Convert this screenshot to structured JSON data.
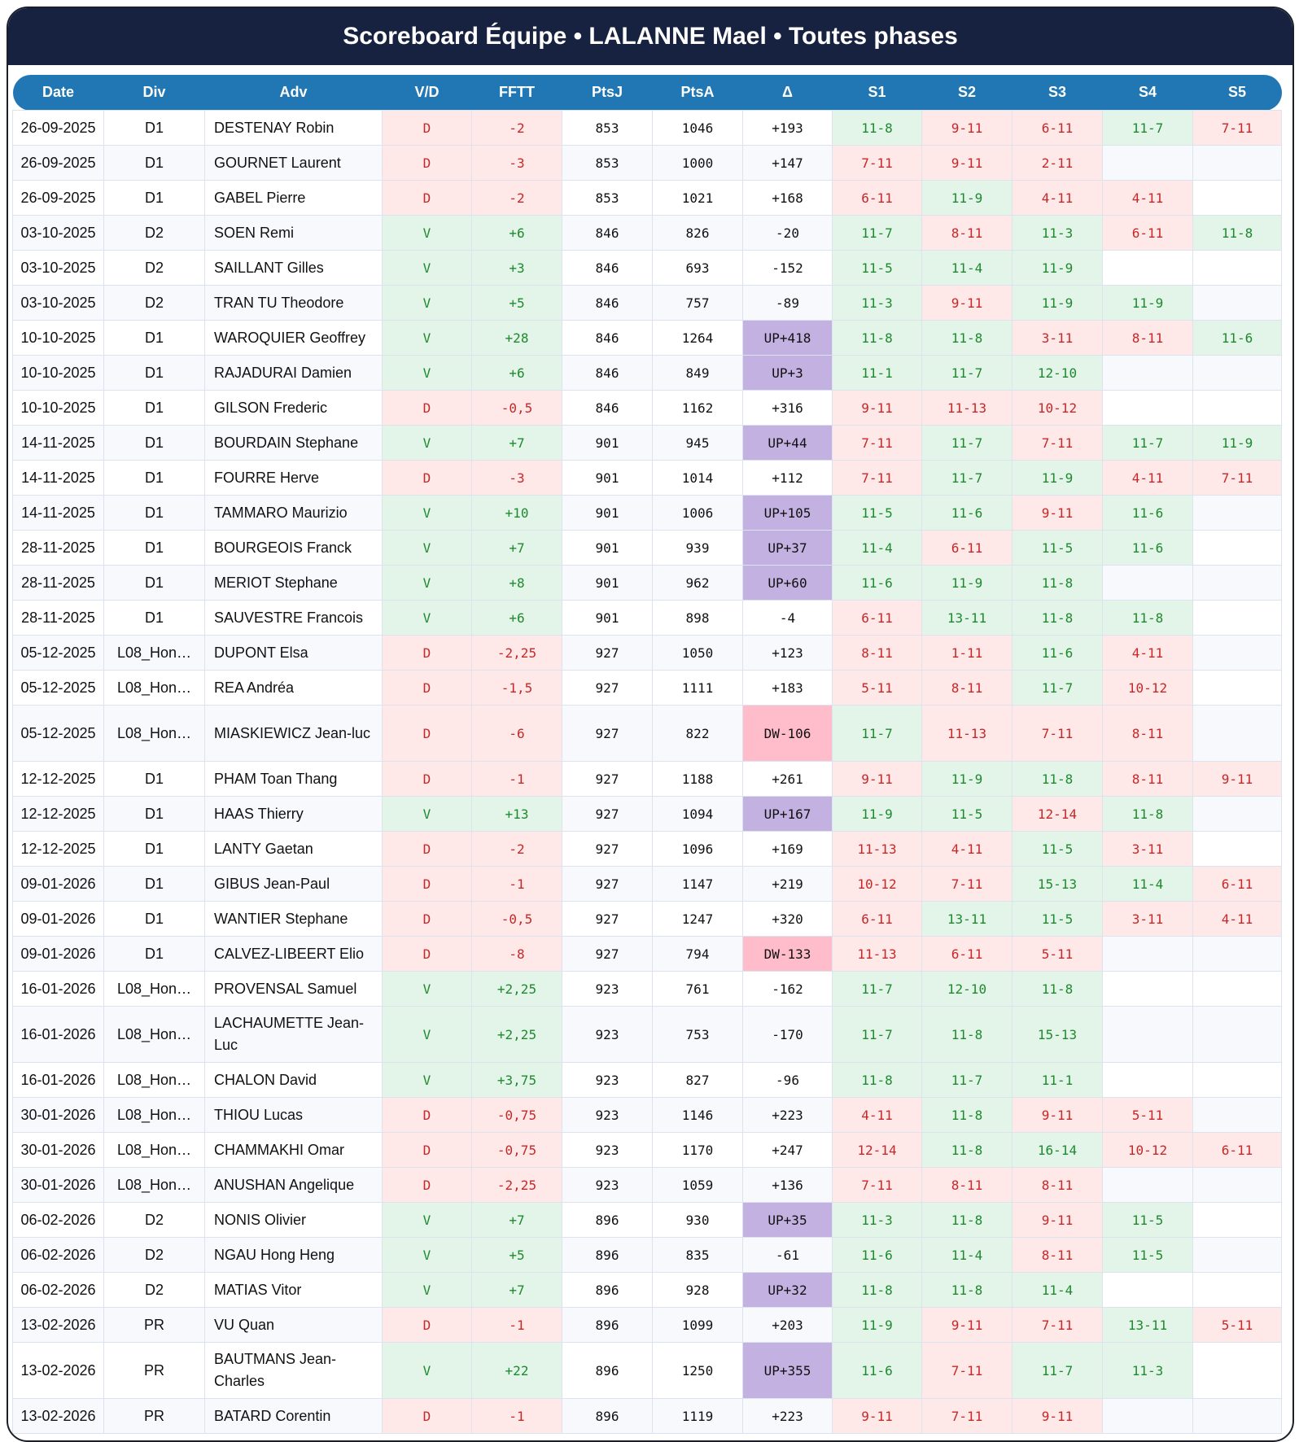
{
  "title": "Scoreboard Équipe • LALANNE Mael • Toutes phases",
  "colors": {
    "header_bg": "#16223f",
    "table_header_bg": "#2077b4",
    "win_bg": "#e3f4e8",
    "win_text": "#1e8a2e",
    "loss_bg": "#ffe8e8",
    "loss_text": "#c62828",
    "up_bg": "#c3b1e1",
    "down_bg": "#ffbccb"
  },
  "columns": [
    "Date",
    "Div",
    "Adv",
    "V/D",
    "FFTT",
    "PtsJ",
    "PtsA",
    "Δ",
    "S1",
    "S2",
    "S3",
    "S4",
    "S5"
  ],
  "rows": [
    {
      "date": "26-09-2025",
      "div": "D1",
      "adv": "DESTENAY Robin",
      "vd": "D",
      "fftt": "-2",
      "ptsj": "853",
      "ptsa": "1046",
      "delta": "+193",
      "sets": [
        "11-8",
        "9-11",
        "6-11",
        "11-7",
        "7-11"
      ]
    },
    {
      "date": "26-09-2025",
      "div": "D1",
      "adv": "GOURNET Laurent",
      "vd": "D",
      "fftt": "-3",
      "ptsj": "853",
      "ptsa": "1000",
      "delta": "+147",
      "sets": [
        "7-11",
        "9-11",
        "2-11",
        "",
        ""
      ]
    },
    {
      "date": "26-09-2025",
      "div": "D1",
      "adv": "GABEL Pierre",
      "vd": "D",
      "fftt": "-2",
      "ptsj": "853",
      "ptsa": "1021",
      "delta": "+168",
      "sets": [
        "6-11",
        "11-9",
        "4-11",
        "4-11",
        ""
      ]
    },
    {
      "date": "03-10-2025",
      "div": "D2",
      "adv": "SOEN Remi",
      "vd": "V",
      "fftt": "+6",
      "ptsj": "846",
      "ptsa": "826",
      "delta": "-20",
      "sets": [
        "11-7",
        "8-11",
        "11-3",
        "6-11",
        "11-8"
      ]
    },
    {
      "date": "03-10-2025",
      "div": "D2",
      "adv": "SAILLANT Gilles",
      "vd": "V",
      "fftt": "+3",
      "ptsj": "846",
      "ptsa": "693",
      "delta": "-152",
      "sets": [
        "11-5",
        "11-4",
        "11-9",
        "",
        ""
      ]
    },
    {
      "date": "03-10-2025",
      "div": "D2",
      "adv": "TRAN TU Theodore",
      "vd": "V",
      "fftt": "+5",
      "ptsj": "846",
      "ptsa": "757",
      "delta": "-89",
      "sets": [
        "11-3",
        "9-11",
        "11-9",
        "11-9",
        ""
      ]
    },
    {
      "date": "10-10-2025",
      "div": "D1",
      "adv": "WAROQUIER Geoffrey",
      "vd": "V",
      "fftt": "+28",
      "ptsj": "846",
      "ptsa": "1264",
      "delta": "UP+418",
      "sets": [
        "11-8",
        "11-8",
        "3-11",
        "8-11",
        "11-6"
      ]
    },
    {
      "date": "10-10-2025",
      "div": "D1",
      "adv": "RAJADURAI Damien",
      "vd": "V",
      "fftt": "+6",
      "ptsj": "846",
      "ptsa": "849",
      "delta": "UP+3",
      "sets": [
        "11-1",
        "11-7",
        "12-10",
        "",
        ""
      ]
    },
    {
      "date": "10-10-2025",
      "div": "D1",
      "adv": "GILSON Frederic",
      "vd": "D",
      "fftt": "-0,5",
      "ptsj": "846",
      "ptsa": "1162",
      "delta": "+316",
      "sets": [
        "9-11",
        "11-13",
        "10-12",
        "",
        ""
      ]
    },
    {
      "date": "14-11-2025",
      "div": "D1",
      "adv": "BOURDAIN Stephane",
      "vd": "V",
      "fftt": "+7",
      "ptsj": "901",
      "ptsa": "945",
      "delta": "UP+44",
      "sets": [
        "7-11",
        "11-7",
        "7-11",
        "11-7",
        "11-9"
      ]
    },
    {
      "date": "14-11-2025",
      "div": "D1",
      "adv": "FOURRE Herve",
      "vd": "D",
      "fftt": "-3",
      "ptsj": "901",
      "ptsa": "1014",
      "delta": "+112",
      "sets": [
        "7-11",
        "11-7",
        "11-9",
        "4-11",
        "7-11"
      ]
    },
    {
      "date": "14-11-2025",
      "div": "D1",
      "adv": "TAMMARO Maurizio",
      "vd": "V",
      "fftt": "+10",
      "ptsj": "901",
      "ptsa": "1006",
      "delta": "UP+105",
      "sets": [
        "11-5",
        "11-6",
        "9-11",
        "11-6",
        ""
      ]
    },
    {
      "date": "28-11-2025",
      "div": "D1",
      "adv": "BOURGEOIS Franck",
      "vd": "V",
      "fftt": "+7",
      "ptsj": "901",
      "ptsa": "939",
      "delta": "UP+37",
      "sets": [
        "11-4",
        "6-11",
        "11-5",
        "11-6",
        ""
      ]
    },
    {
      "date": "28-11-2025",
      "div": "D1",
      "adv": "MERIOT Stephane",
      "vd": "V",
      "fftt": "+8",
      "ptsj": "901",
      "ptsa": "962",
      "delta": "UP+60",
      "sets": [
        "11-6",
        "11-9",
        "11-8",
        "",
        ""
      ]
    },
    {
      "date": "28-11-2025",
      "div": "D1",
      "adv": "SAUVESTRE Francois",
      "vd": "V",
      "fftt": "+6",
      "ptsj": "901",
      "ptsa": "898",
      "delta": "-4",
      "sets": [
        "6-11",
        "13-11",
        "11-8",
        "11-8",
        ""
      ]
    },
    {
      "date": "05-12-2025",
      "div": "L08_Hon…",
      "adv": "DUPONT Elsa",
      "vd": "D",
      "fftt": "-2,25",
      "ptsj": "927",
      "ptsa": "1050",
      "delta": "+123",
      "sets": [
        "8-11",
        "1-11",
        "11-6",
        "4-11",
        ""
      ]
    },
    {
      "date": "05-12-2025",
      "div": "L08_Hon…",
      "adv": "REA Andréa",
      "vd": "D",
      "fftt": "-1,5",
      "ptsj": "927",
      "ptsa": "1111",
      "delta": "+183",
      "sets": [
        "5-11",
        "8-11",
        "11-7",
        "10-12",
        ""
      ]
    },
    {
      "date": "05-12-2025",
      "div": "L08_Hon…",
      "adv": "MIASKIEWICZ Jean-luc",
      "vd": "D",
      "fftt": "-6",
      "ptsj": "927",
      "ptsa": "822",
      "delta": "DW-106",
      "sets": [
        "11-7",
        "11-13",
        "7-11",
        "8-11",
        ""
      ]
    },
    {
      "date": "12-12-2025",
      "div": "D1",
      "adv": "PHAM Toan Thang",
      "vd": "D",
      "fftt": "-1",
      "ptsj": "927",
      "ptsa": "1188",
      "delta": "+261",
      "sets": [
        "9-11",
        "11-9",
        "11-8",
        "8-11",
        "9-11"
      ]
    },
    {
      "date": "12-12-2025",
      "div": "D1",
      "adv": "HAAS Thierry",
      "vd": "V",
      "fftt": "+13",
      "ptsj": "927",
      "ptsa": "1094",
      "delta": "UP+167",
      "sets": [
        "11-9",
        "11-5",
        "12-14",
        "11-8",
        ""
      ]
    },
    {
      "date": "12-12-2025",
      "div": "D1",
      "adv": "LANTY Gaetan",
      "vd": "D",
      "fftt": "-2",
      "ptsj": "927",
      "ptsa": "1096",
      "delta": "+169",
      "sets": [
        "11-13",
        "4-11",
        "11-5",
        "3-11",
        ""
      ]
    },
    {
      "date": "09-01-2026",
      "div": "D1",
      "adv": "GIBUS Jean-Paul",
      "vd": "D",
      "fftt": "-1",
      "ptsj": "927",
      "ptsa": "1147",
      "delta": "+219",
      "sets": [
        "10-12",
        "7-11",
        "15-13",
        "11-4",
        "6-11"
      ]
    },
    {
      "date": "09-01-2026",
      "div": "D1",
      "adv": "WANTIER Stephane",
      "vd": "D",
      "fftt": "-0,5",
      "ptsj": "927",
      "ptsa": "1247",
      "delta": "+320",
      "sets": [
        "6-11",
        "13-11",
        "11-5",
        "3-11",
        "4-11"
      ]
    },
    {
      "date": "09-01-2026",
      "div": "D1",
      "adv": "CALVEZ-LIBEERT Elio",
      "vd": "D",
      "fftt": "-8",
      "ptsj": "927",
      "ptsa": "794",
      "delta": "DW-133",
      "sets": [
        "11-13",
        "6-11",
        "5-11",
        "",
        ""
      ]
    },
    {
      "date": "16-01-2026",
      "div": "L08_Hon…",
      "adv": "PROVENSAL Samuel",
      "vd": "V",
      "fftt": "+2,25",
      "ptsj": "923",
      "ptsa": "761",
      "delta": "-162",
      "sets": [
        "11-7",
        "12-10",
        "11-8",
        "",
        ""
      ]
    },
    {
      "date": "16-01-2026",
      "div": "L08_Hon…",
      "adv": "LACHAUMETTE Jean-Luc",
      "vd": "V",
      "fftt": "+2,25",
      "ptsj": "923",
      "ptsa": "753",
      "delta": "-170",
      "sets": [
        "11-7",
        "11-8",
        "15-13",
        "",
        ""
      ]
    },
    {
      "date": "16-01-2026",
      "div": "L08_Hon…",
      "adv": "CHALON David",
      "vd": "V",
      "fftt": "+3,75",
      "ptsj": "923",
      "ptsa": "827",
      "delta": "-96",
      "sets": [
        "11-8",
        "11-7",
        "11-1",
        "",
        ""
      ]
    },
    {
      "date": "30-01-2026",
      "div": "L08_Hon…",
      "adv": "THIOU Lucas",
      "vd": "D",
      "fftt": "-0,75",
      "ptsj": "923",
      "ptsa": "1146",
      "delta": "+223",
      "sets": [
        "4-11",
        "11-8",
        "9-11",
        "5-11",
        ""
      ]
    },
    {
      "date": "30-01-2026",
      "div": "L08_Hon…",
      "adv": "CHAMMAKHI Omar",
      "vd": "D",
      "fftt": "-0,75",
      "ptsj": "923",
      "ptsa": "1170",
      "delta": "+247",
      "sets": [
        "12-14",
        "11-8",
        "16-14",
        "10-12",
        "6-11"
      ]
    },
    {
      "date": "30-01-2026",
      "div": "L08_Hon…",
      "adv": "ANUSHAN Angelique",
      "vd": "D",
      "fftt": "-2,25",
      "ptsj": "923",
      "ptsa": "1059",
      "delta": "+136",
      "sets": [
        "7-11",
        "8-11",
        "8-11",
        "",
        ""
      ]
    },
    {
      "date": "06-02-2026",
      "div": "D2",
      "adv": "NONIS Olivier",
      "vd": "V",
      "fftt": "+7",
      "ptsj": "896",
      "ptsa": "930",
      "delta": "UP+35",
      "sets": [
        "11-3",
        "11-8",
        "9-11",
        "11-5",
        ""
      ]
    },
    {
      "date": "06-02-2026",
      "div": "D2",
      "adv": "NGAU Hong Heng",
      "vd": "V",
      "fftt": "+5",
      "ptsj": "896",
      "ptsa": "835",
      "delta": "-61",
      "sets": [
        "11-6",
        "11-4",
        "8-11",
        "11-5",
        ""
      ]
    },
    {
      "date": "06-02-2026",
      "div": "D2",
      "adv": "MATIAS Vitor",
      "vd": "V",
      "fftt": "+7",
      "ptsj": "896",
      "ptsa": "928",
      "delta": "UP+32",
      "sets": [
        "11-8",
        "11-8",
        "11-4",
        "",
        ""
      ]
    },
    {
      "date": "13-02-2026",
      "div": "PR",
      "adv": "VU Quan",
      "vd": "D",
      "fftt": "-1",
      "ptsj": "896",
      "ptsa": "1099",
      "delta": "+203",
      "sets": [
        "11-9",
        "9-11",
        "7-11",
        "13-11",
        "5-11"
      ]
    },
    {
      "date": "13-02-2026",
      "div": "PR",
      "adv": "BAUTMANS Jean-Charles",
      "vd": "V",
      "fftt": "+22",
      "ptsj": "896",
      "ptsa": "1250",
      "delta": "UP+355",
      "sets": [
        "11-6",
        "7-11",
        "11-7",
        "11-3",
        ""
      ]
    },
    {
      "date": "13-02-2026",
      "div": "PR",
      "adv": "BATARD Corentin",
      "vd": "D",
      "fftt": "-1",
      "ptsj": "896",
      "ptsa": "1119",
      "delta": "+223",
      "sets": [
        "9-11",
        "7-11",
        "9-11",
        "",
        ""
      ]
    }
  ]
}
